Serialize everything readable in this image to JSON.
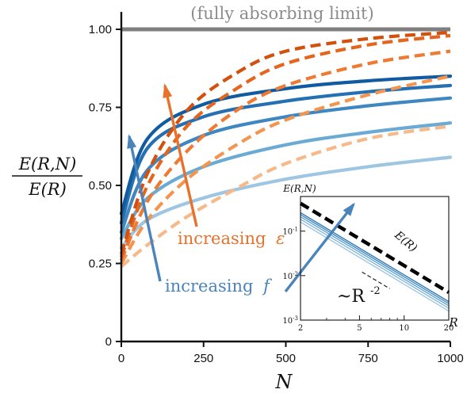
{
  "chart_data": [
    {
      "type": "line",
      "xlabel": "N",
      "ylabel_num": "E(R,N)",
      "ylabel_den": "E(R)",
      "xlim": [
        0,
        1000
      ],
      "ylim": [
        0,
        1.0
      ],
      "xticks": [
        0,
        250,
        500,
        750,
        1000
      ],
      "yticks": [
        "0",
        "0.25",
        "0.50",
        "0.75",
        "1.00"
      ],
      "reference_line": {
        "label": "(fully absorbing limit)",
        "y": 1.0,
        "color": "#7f7f7f"
      },
      "blue_series": [
        {
          "style": "solid",
          "color": "#9ec6e2",
          "x": [
            0,
            80,
            250,
            500,
            750,
            1000
          ],
          "y": [
            0.3,
            0.39,
            0.46,
            0.52,
            0.56,
            0.59
          ]
        },
        {
          "style": "solid",
          "color": "#6aaad3",
          "x": [
            0,
            80,
            250,
            500,
            750,
            1000
          ],
          "y": [
            0.33,
            0.46,
            0.56,
            0.63,
            0.67,
            0.7
          ]
        },
        {
          "style": "solid",
          "color": "#3e87c0",
          "x": [
            0,
            80,
            250,
            500,
            750,
            1000
          ],
          "y": [
            0.35,
            0.55,
            0.66,
            0.72,
            0.755,
            0.78
          ]
        },
        {
          "style": "solid",
          "color": "#2570b2",
          "x": [
            0,
            80,
            250,
            500,
            750,
            1000
          ],
          "y": [
            0.38,
            0.62,
            0.72,
            0.77,
            0.8,
            0.82
          ]
        },
        {
          "style": "solid",
          "color": "#115ba1",
          "x": [
            0,
            80,
            250,
            500,
            750,
            1000
          ],
          "y": [
            0.41,
            0.65,
            0.76,
            0.81,
            0.835,
            0.85
          ]
        }
      ],
      "orange_series": [
        {
          "style": "dashed",
          "color": "#f6b98a",
          "x": [
            0,
            80,
            200,
            350,
            500,
            750,
            1000
          ],
          "y": [
            0.24,
            0.31,
            0.4,
            0.49,
            0.57,
            0.65,
            0.69
          ]
        },
        {
          "style": "dashed",
          "color": "#f3954f",
          "x": [
            0,
            80,
            200,
            350,
            500,
            750,
            1000
          ],
          "y": [
            0.25,
            0.39,
            0.52,
            0.63,
            0.71,
            0.79,
            0.85
          ]
        },
        {
          "style": "dashed",
          "color": "#ee7a33",
          "x": [
            0,
            80,
            200,
            350,
            500,
            750,
            1000
          ],
          "y": [
            0.26,
            0.45,
            0.61,
            0.74,
            0.82,
            0.89,
            0.93
          ]
        },
        {
          "style": "dashed",
          "color": "#e5651f",
          "x": [
            0,
            80,
            200,
            350,
            500,
            750,
            1000
          ],
          "y": [
            0.27,
            0.5,
            0.69,
            0.81,
            0.89,
            0.95,
            0.98
          ]
        },
        {
          "style": "dashed",
          "color": "#d2510f",
          "x": [
            0,
            80,
            200,
            350,
            500,
            750,
            1000
          ],
          "y": [
            0.28,
            0.54,
            0.74,
            0.86,
            0.93,
            0.97,
            0.99
          ]
        }
      ],
      "annotations": [
        {
          "text": "increasing",
          "symbol": "ε",
          "color": "#e8712b"
        },
        {
          "text": "increasing",
          "symbol": "f",
          "color": "#4a84ba"
        }
      ]
    },
    {
      "type": "line",
      "inset": true,
      "scale": "log-log",
      "xlabel": "R",
      "ylabel": "E(R,N)",
      "xlim": [
        2,
        20
      ],
      "ylim": [
        0.001,
        0.6
      ],
      "xticks": [
        "2",
        "5",
        "10",
        "20"
      ],
      "yticks": [
        "10",
        "10",
        "10"
      ],
      "ytick_exponents": [
        "-1",
        "-2",
        "-3"
      ],
      "reference": {
        "label": "E(R)",
        "style": "dashed",
        "color": "#000000",
        "x": [
          2,
          20
        ],
        "y": [
          0.42,
          0.0042
        ]
      },
      "slope_label": "~R",
      "slope_exponent": "-2",
      "series": [
        {
          "color": "#9ec6e2",
          "x": [
            2,
            20
          ],
          "y": [
            0.16,
            0.0016
          ]
        },
        {
          "color": "#7fb4da",
          "x": [
            2,
            20
          ],
          "y": [
            0.185,
            0.00185
          ]
        },
        {
          "color": "#5d9ecd",
          "x": [
            2,
            20
          ],
          "y": [
            0.21,
            0.0021
          ]
        },
        {
          "color": "#3e87c0",
          "x": [
            2,
            20
          ],
          "y": [
            0.235,
            0.00235
          ]
        },
        {
          "color": "#2570b2",
          "x": [
            2,
            20
          ],
          "y": [
            0.26,
            0.0026
          ]
        }
      ]
    }
  ]
}
